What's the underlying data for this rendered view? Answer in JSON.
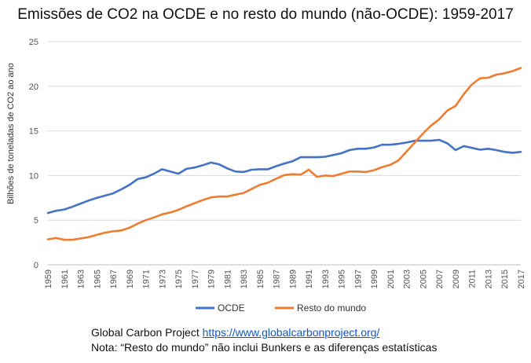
{
  "chart_data": {
    "type": "line",
    "title": "Emissões de CO2 na OCDE e no resto do mundo (não-OCDE): 1959-2017",
    "xlabel": "",
    "ylabel": "Bilhões de toneladas de CO2 ao ano",
    "ylim": [
      0,
      25
    ],
    "yticks": [
      0,
      5,
      10,
      15,
      20,
      25
    ],
    "grid": true,
    "legend": "bottom",
    "x": [
      1959,
      1960,
      1961,
      1962,
      1963,
      1964,
      1965,
      1966,
      1967,
      1968,
      1969,
      1970,
      1971,
      1972,
      1973,
      1974,
      1975,
      1976,
      1977,
      1978,
      1979,
      1980,
      1981,
      1982,
      1983,
      1984,
      1985,
      1986,
      1987,
      1988,
      1989,
      1990,
      1991,
      1992,
      1993,
      1994,
      1995,
      1996,
      1997,
      1998,
      1999,
      2000,
      2001,
      2002,
      2003,
      2004,
      2005,
      2006,
      2007,
      2008,
      2009,
      2010,
      2011,
      2012,
      2013,
      2014,
      2015,
      2016,
      2017
    ],
    "xtick_labels": [
      "1959",
      "1961",
      "1963",
      "1965",
      "1967",
      "1969",
      "1971",
      "1973",
      "1975",
      "1977",
      "1979",
      "1981",
      "1983",
      "1985",
      "1987",
      "1989",
      "1991",
      "1993",
      "1995",
      "1997",
      "1999",
      "2001",
      "2003",
      "2005",
      "2007",
      "2009",
      "2011",
      "2013",
      "2015",
      "2017"
    ],
    "series": [
      {
        "name": "OCDE",
        "color": "#4472c4",
        "values": [
          5.8,
          6.05,
          6.2,
          6.5,
          6.85,
          7.2,
          7.5,
          7.75,
          8.0,
          8.45,
          8.95,
          9.6,
          9.8,
          10.2,
          10.7,
          10.45,
          10.2,
          10.75,
          10.9,
          11.15,
          11.45,
          11.25,
          10.8,
          10.45,
          10.4,
          10.65,
          10.7,
          10.7,
          11.05,
          11.35,
          11.6,
          12.05,
          12.05,
          12.05,
          12.1,
          12.3,
          12.5,
          12.85,
          13.0,
          13.0,
          13.15,
          13.45,
          13.45,
          13.55,
          13.7,
          13.9,
          13.9,
          13.9,
          14.0,
          13.6,
          12.85,
          13.3,
          13.1,
          12.9,
          13.0,
          12.85,
          12.65,
          12.55,
          12.65
        ]
      },
      {
        "name": "Resto do mundo",
        "color": "#ed7d31",
        "values": [
          2.85,
          3.0,
          2.8,
          2.8,
          2.95,
          3.1,
          3.35,
          3.6,
          3.75,
          3.85,
          4.15,
          4.6,
          5.0,
          5.3,
          5.65,
          5.85,
          6.15,
          6.55,
          6.9,
          7.25,
          7.55,
          7.65,
          7.65,
          7.85,
          8.05,
          8.5,
          8.95,
          9.2,
          9.65,
          10.05,
          10.15,
          10.1,
          10.65,
          9.85,
          10.0,
          9.95,
          10.2,
          10.45,
          10.45,
          10.4,
          10.6,
          10.95,
          11.2,
          11.7,
          12.7,
          13.7,
          14.7,
          15.6,
          16.3,
          17.3,
          17.8,
          19.1,
          20.2,
          20.9,
          20.95,
          21.3,
          21.45,
          21.7,
          22.05
        ]
      }
    ]
  },
  "footer": {
    "source_label": "Global Carbon Project ",
    "source_url": "https://www.globalcarbonproject.org/",
    "note": "Nota: “Resto do mundo” não inclui Bunkers e as diferenças estatísticas"
  }
}
